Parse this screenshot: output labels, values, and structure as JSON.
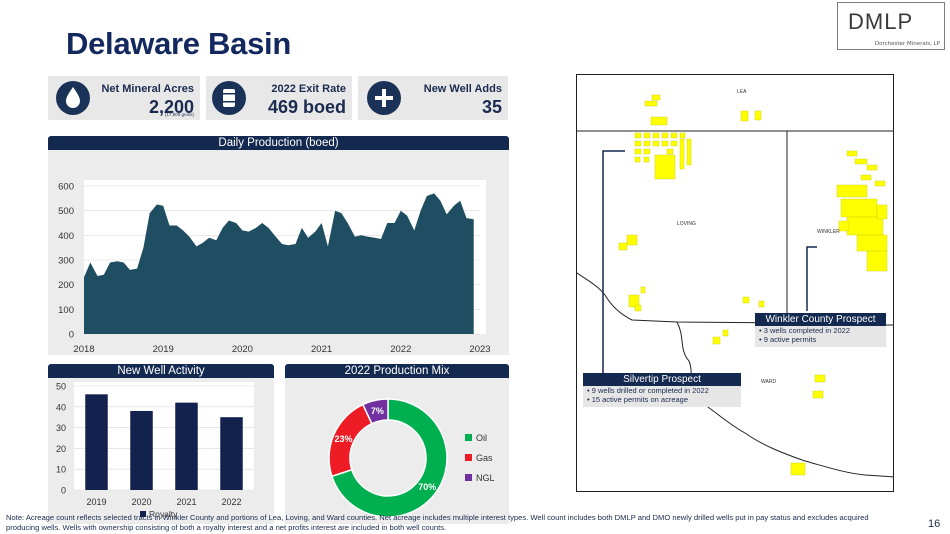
{
  "title": "Delaware Basin",
  "logo": {
    "name": "DMLP",
    "subtitle": "Dorchester Minerals, LP"
  },
  "kpis": [
    {
      "label": "Net Mineral Acres",
      "value": "2,200",
      "sub": "(17,800 gross)",
      "icon": "water-drop-icon"
    },
    {
      "label": "2022 Exit Rate",
      "value": "469 boed",
      "icon": "oil-barrel-icon"
    },
    {
      "label": "New Well Adds",
      "value": "35",
      "icon": "plus-icon"
    }
  ],
  "production_panel": {
    "title": "Daily Production (boed)"
  },
  "activity_panel": {
    "title": "New Well Activity"
  },
  "mix_panel": {
    "title": "2022 Production Mix"
  },
  "chart_data": [
    {
      "type": "area",
      "title": "Daily Production (boed)",
      "x_ticks": [
        "2018",
        "2019",
        "2020",
        "2021",
        "2022",
        "2023"
      ],
      "y_ticks": [
        "0",
        "100",
        "200",
        "300",
        "400",
        "500",
        "600"
      ],
      "ylim": [
        0,
        600
      ],
      "xlim": [
        2018,
        2023
      ],
      "color": "#1f4e63",
      "x": [
        2018.0,
        2018.08,
        2018.17,
        2018.25,
        2018.33,
        2018.42,
        2018.5,
        2018.58,
        2018.67,
        2018.75,
        2018.83,
        2018.92,
        2019.0,
        2019.08,
        2019.17,
        2019.25,
        2019.33,
        2019.42,
        2019.5,
        2019.58,
        2019.67,
        2019.75,
        2019.83,
        2019.92,
        2020.0,
        2020.08,
        2020.17,
        2020.25,
        2020.33,
        2020.42,
        2020.5,
        2020.58,
        2020.67,
        2020.75,
        2020.83,
        2020.92,
        2021.0,
        2021.08,
        2021.17,
        2021.25,
        2021.33,
        2021.42,
        2021.5,
        2021.58,
        2021.67,
        2021.75,
        2021.83,
        2021.92,
        2022.0,
        2022.08,
        2022.17,
        2022.25,
        2022.33,
        2022.42,
        2022.5,
        2022.58,
        2022.67,
        2022.75,
        2022.83,
        2022.92
      ],
      "values": [
        230,
        290,
        235,
        240,
        290,
        295,
        290,
        260,
        265,
        350,
        490,
        525,
        520,
        440,
        440,
        420,
        395,
        355,
        370,
        390,
        380,
        430,
        460,
        450,
        420,
        415,
        430,
        450,
        430,
        395,
        365,
        360,
        365,
        430,
        390,
        415,
        450,
        355,
        500,
        490,
        450,
        395,
        400,
        395,
        390,
        385,
        450,
        450,
        500,
        480,
        420,
        500,
        560,
        570,
        540,
        485,
        520,
        540,
        470,
        465
      ]
    },
    {
      "type": "bar",
      "title": "New Well Activity",
      "categories": [
        "2019",
        "2020",
        "2021",
        "2022"
      ],
      "y_ticks": [
        "0",
        "10",
        "20",
        "30",
        "40",
        "50"
      ],
      "ylim": [
        0,
        50
      ],
      "series": [
        {
          "name": "Royalty",
          "values": [
            46,
            38,
            42,
            35
          ],
          "color": "#13214f"
        }
      ]
    },
    {
      "type": "pie",
      "title": "2022 Production Mix",
      "donut": true,
      "slices": [
        {
          "name": "Oil",
          "value": 70,
          "label": "70%",
          "color": "#00b050"
        },
        {
          "name": "Gas",
          "value": 23,
          "label": "23%",
          "color": "#ee1c24"
        },
        {
          "name": "NGL",
          "value": 7,
          "label": "7%",
          "color": "#7030a0"
        }
      ]
    }
  ],
  "map": {
    "counties": [
      "LEA",
      "LOVING",
      "WINKLER",
      "WARD"
    ],
    "callouts": [
      {
        "title": "Winkler County Prospect",
        "lines": [
          "• 3 wells completed in 2022",
          "• 9 active permits"
        ]
      },
      {
        "title": "Silvertip Prospect",
        "lines": [
          "• 9 wells drilled or completed in 2022",
          "• 15 active permits on acreage"
        ]
      }
    ],
    "tract_color": "#ffff00"
  },
  "note": "Note: Acreage count reflects selected tracts in Winkler County and portions of Lea, Loving, and Ward counties. Net acreage includes multiple interest types. Well count includes both DMLP and DMO newly drilled wells put in pay status and excludes acquired producing wells. Wells with ownership consisting of both a royalty interest and a net profits interest are included in both well counts.",
  "page_number": "16"
}
